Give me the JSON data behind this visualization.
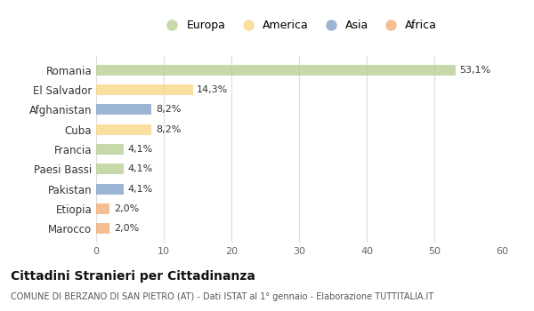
{
  "countries": [
    "Romania",
    "El Salvador",
    "Afghanistan",
    "Cuba",
    "Francia",
    "Paesi Bassi",
    "Pakistan",
    "Etiopia",
    "Marocco"
  ],
  "values": [
    53.1,
    14.3,
    8.2,
    8.2,
    4.1,
    4.1,
    4.1,
    2.0,
    2.0
  ],
  "labels": [
    "53,1%",
    "14,3%",
    "8,2%",
    "8,2%",
    "4,1%",
    "4,1%",
    "4,1%",
    "2,0%",
    "2,0%"
  ],
  "continents": [
    "Europa",
    "America",
    "Asia",
    "America",
    "Europa",
    "Europa",
    "Asia",
    "Africa",
    "Africa"
  ],
  "colors": {
    "Europa": "#b5cc8e",
    "America": "#f9d57e",
    "Asia": "#7b9dc8",
    "Africa": "#f0a86e"
  },
  "legend_order": [
    "Europa",
    "America",
    "Asia",
    "Africa"
  ],
  "title": "Cittadini Stranieri per Cittadinanza",
  "subtitle": "COMUNE DI BERZANO DI SAN PIETRO (AT) - Dati ISTAT al 1° gennaio - Elaborazione TUTTITALIA.IT",
  "xlim": [
    0,
    60
  ],
  "xticks": [
    0,
    10,
    20,
    30,
    40,
    50,
    60
  ],
  "background_color": "#ffffff",
  "grid_color": "#dddddd",
  "bar_alpha": 0.75
}
